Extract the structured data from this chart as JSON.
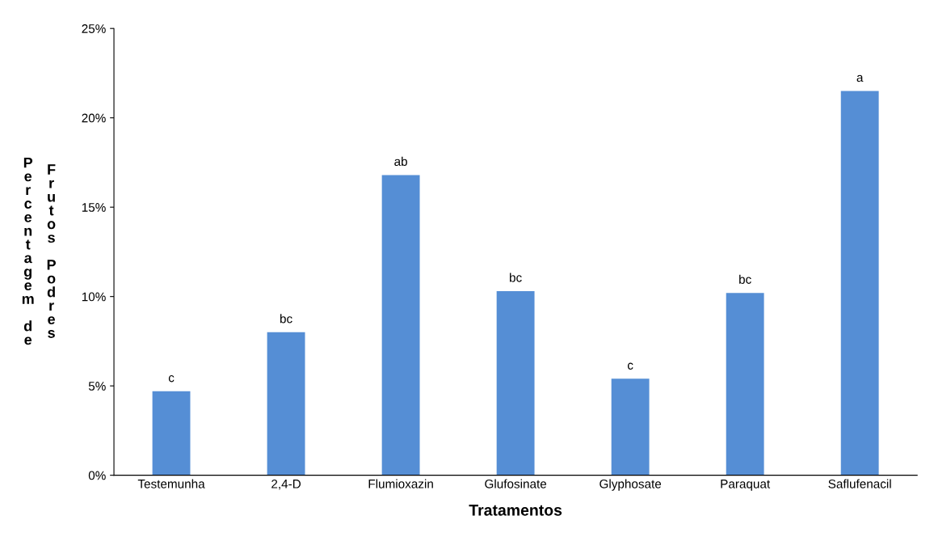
{
  "chart_data": {
    "type": "bar",
    "xlabel": "Tratamentos",
    "ylabel": "Percentagem de Frutos Podres",
    "categories": [
      "Testemunha",
      "2,4-D",
      "Flumioxazin",
      "Glufosinate",
      "Glyphosate",
      "Paraquat",
      "Saflufenacil"
    ],
    "values": [
      4.7,
      8.0,
      16.8,
      10.3,
      5.4,
      10.2,
      21.5
    ],
    "color": "#558ed5",
    "ylim": [
      0,
      25
    ],
    "yticks": [
      {
        "value": 0,
        "label": "0%"
      },
      {
        "value": 5,
        "label": "5%"
      },
      {
        "value": 10,
        "label": "10%"
      },
      {
        "value": 15,
        "label": "15%"
      },
      {
        "value": 20,
        "label": "20%"
      },
      {
        "value": 25,
        "label": "25%"
      }
    ],
    "annotations": [
      {
        "text": "c",
        "x": "Testemunha",
        "y": 4.7
      },
      {
        "text": "bc",
        "x": "2,4-D",
        "y": 8.0
      },
      {
        "text": "ab",
        "x": "Flumioxazin",
        "y": 16.8
      },
      {
        "text": "bc",
        "x": "Glufosinate",
        "y": 10.3
      },
      {
        "text": "c",
        "x": "Glyphosate",
        "y": 5.4
      },
      {
        "text": "bc",
        "x": "Paraquat",
        "y": 10.2
      },
      {
        "text": "a",
        "x": "Saflufenacil",
        "y": 21.5
      }
    ],
    "grid": false
  }
}
